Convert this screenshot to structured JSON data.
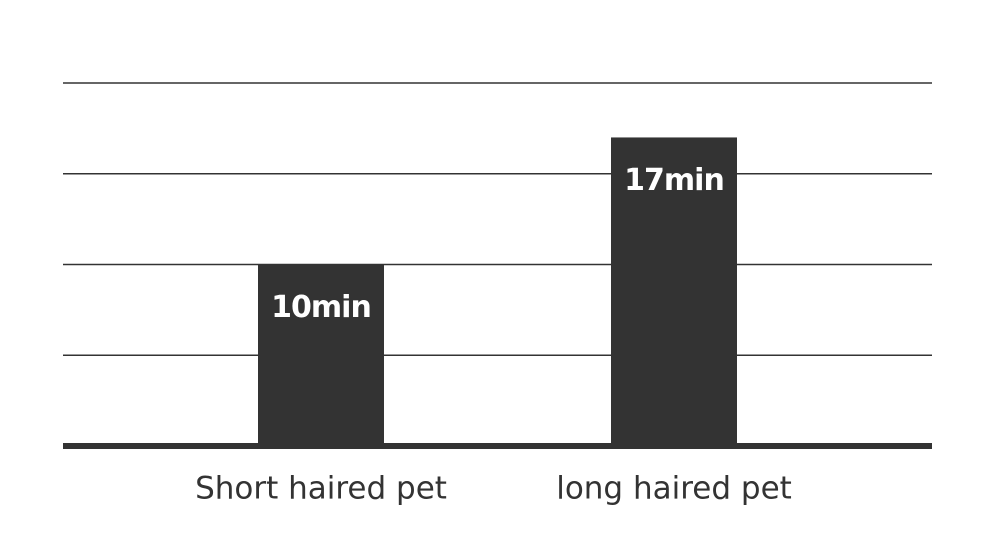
{
  "chart_data": {
    "type": "bar",
    "categories": [
      "Short haired pet",
      "long haired pet"
    ],
    "values": [
      10,
      17
    ],
    "value_labels": [
      "10min",
      "17min"
    ],
    "color": "#333333",
    "ylim": [
      0,
      20
    ],
    "yticks": [
      0,
      5,
      10,
      15,
      20
    ],
    "grid": true
  }
}
